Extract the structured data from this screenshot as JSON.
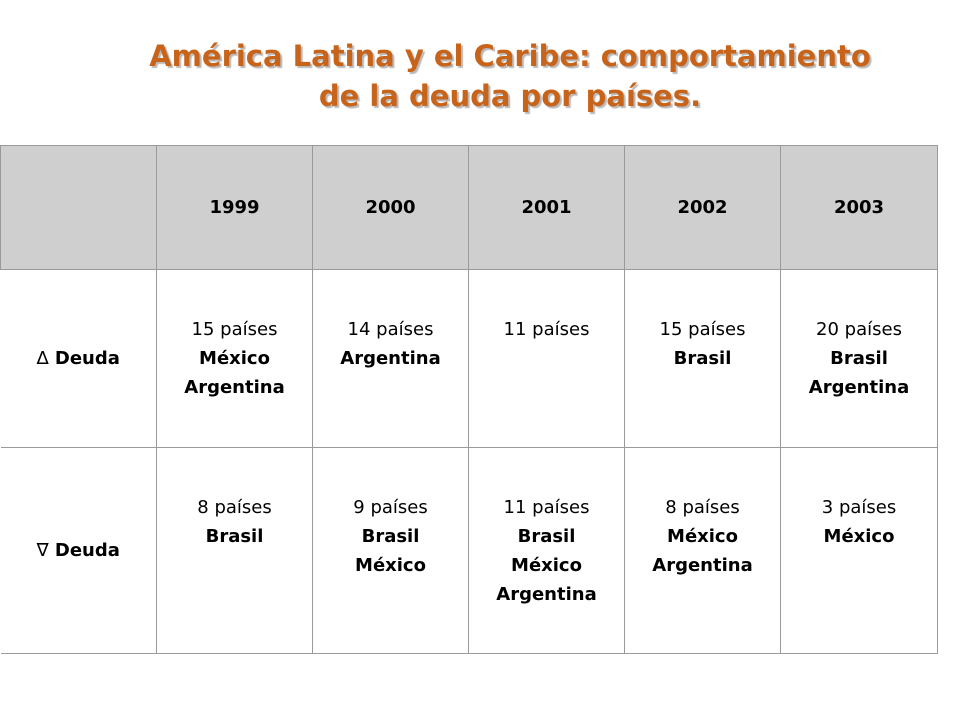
{
  "title": {
    "line1": "América Latina y el Caribe: comportamiento",
    "line2": "de la deuda por países."
  },
  "table": {
    "corner": "",
    "years": [
      "1999",
      "2000",
      "2001",
      "2002",
      "2003"
    ],
    "rows": [
      {
        "symbol": "∆",
        "label": "Deuda",
        "cells": [
          {
            "count": "15 países",
            "countries": [
              "México",
              "Argentina"
            ]
          },
          {
            "count": "14 países",
            "countries": [
              "Argentina"
            ]
          },
          {
            "count": "11 países",
            "countries": []
          },
          {
            "count": "15 países",
            "countries": [
              "Brasil"
            ]
          },
          {
            "count": "20 países",
            "countries": [
              "Brasil",
              "Argentina"
            ]
          }
        ]
      },
      {
        "symbol": "∇",
        "label": "Deuda",
        "cells": [
          {
            "count": "8 países",
            "countries": [
              "Brasil"
            ]
          },
          {
            "count": "9 países",
            "countries": [
              "Brasil",
              "México"
            ]
          },
          {
            "count": "11 países",
            "countries": [
              "Brasil",
              "México",
              "Argentina"
            ]
          },
          {
            "count": "8 países",
            "countries": [
              "México",
              "Argentina"
            ]
          },
          {
            "count": "3 países",
            "countries": [
              "México"
            ]
          }
        ]
      }
    ]
  }
}
